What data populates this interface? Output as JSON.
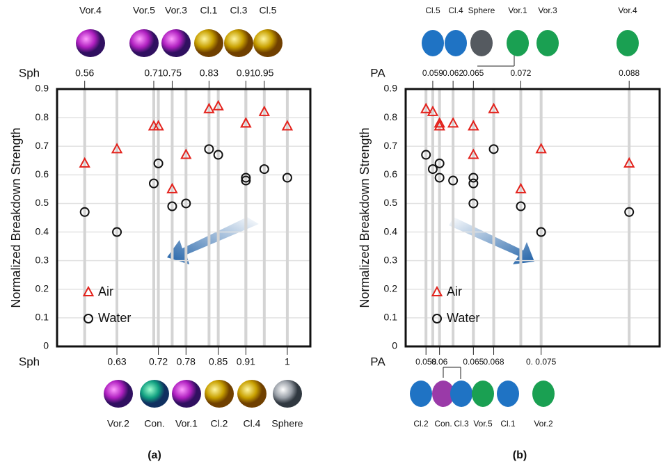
{
  "chart_data": [
    {
      "type": "scatter",
      "y_label": "Normalized Breakdown Strength",
      "panel_label": "(a)",
      "top_axis": {
        "label": "Sph",
        "ticks": [
          0.56,
          0.71,
          0.75,
          0.83,
          0.91,
          0.95
        ],
        "shapes": [
          "Vor.4",
          "Vor.5",
          "Vor.3",
          "Cl.1",
          "Cl.3",
          "Cl.5"
        ]
      },
      "bottom_axis": {
        "label": "Sph",
        "ticks": [
          0.63,
          0.72,
          0.78,
          0.85,
          0.91,
          1
        ],
        "shapes": [
          "Vor.2",
          "Con.",
          "Vor.1",
          "Cl.2",
          "Cl.4",
          "Sphere"
        ]
      },
      "x": [
        0.56,
        0.63,
        0.71,
        0.72,
        0.75,
        0.78,
        0.83,
        0.85,
        0.91,
        0.91,
        0.95,
        1
      ],
      "series": [
        {
          "name": "Air",
          "color": "#e3221c",
          "marker": "triangle",
          "values": [
            0.64,
            0.69,
            0.77,
            0.77,
            0.55,
            0.67,
            0.83,
            0.84,
            0.78,
            0.78,
            0.82,
            0.77
          ]
        },
        {
          "name": "Water",
          "color": "#111111",
          "marker": "circle",
          "values": [
            0.47,
            0.4,
            0.57,
            0.64,
            0.49,
            0.5,
            0.69,
            0.67,
            0.59,
            0.58,
            0.62,
            0.59
          ]
        }
      ],
      "xlim": [
        0.5,
        1.05
      ],
      "ylim": [
        0,
        0.9
      ],
      "yticks": [
        0,
        0.1,
        0.2,
        0.3,
        0.4,
        0.5,
        0.6,
        0.7,
        0.8,
        0.9
      ],
      "grid": true,
      "legend": "lower left"
    },
    {
      "type": "scatter",
      "y_label": "Normalized Breakdown Strength",
      "panel_label": "(b)",
      "top_axis": {
        "label": "PA",
        "ticks": [
          0.059,
          0.062,
          0.065,
          0.072,
          0.088
        ],
        "shapes": [
          "Cl.5",
          "Cl.4",
          "Sphere",
          "Vor.1",
          "Vor.3",
          "Vor.4"
        ]
      },
      "bottom_axis": {
        "label": "PA",
        "ticks": [
          0.058,
          0.06,
          0.065,
          0.068,
          {
            "value": 0.075,
            "label": "0. 0.075"
          }
        ],
        "shapes": [
          "Cl.2",
          "Con.",
          "Cl.3",
          "Vor.5",
          "Cl.1",
          "Vor.2"
        ]
      },
      "x": [
        0.058,
        0.059,
        0.06,
        0.06,
        0.062,
        0.065,
        0.065,
        0.065,
        0.068,
        0.072,
        0.075,
        0.088
      ],
      "series": [
        {
          "name": "Air",
          "color": "#e3221c",
          "marker": "triangle",
          "values": [
            0.83,
            0.82,
            0.77,
            0.78,
            0.78,
            0.77,
            0.77,
            0.67,
            0.83,
            0.55,
            0.69,
            0.64
          ]
        },
        {
          "name": "Water",
          "color": "#111111",
          "marker": "circle",
          "values": [
            0.67,
            0.62,
            0.64,
            0.59,
            0.58,
            0.59,
            0.57,
            0.5,
            0.69,
            0.49,
            0.4,
            0.47
          ]
        }
      ],
      "xlim": [
        0.055,
        0.0925
      ],
      "ylim": [
        0,
        0.9
      ],
      "yticks": [
        0,
        0.1,
        0.2,
        0.3,
        0.4,
        0.5,
        0.6,
        0.7,
        0.8,
        0.9
      ],
      "grid": true,
      "legend": "lower left"
    }
  ]
}
